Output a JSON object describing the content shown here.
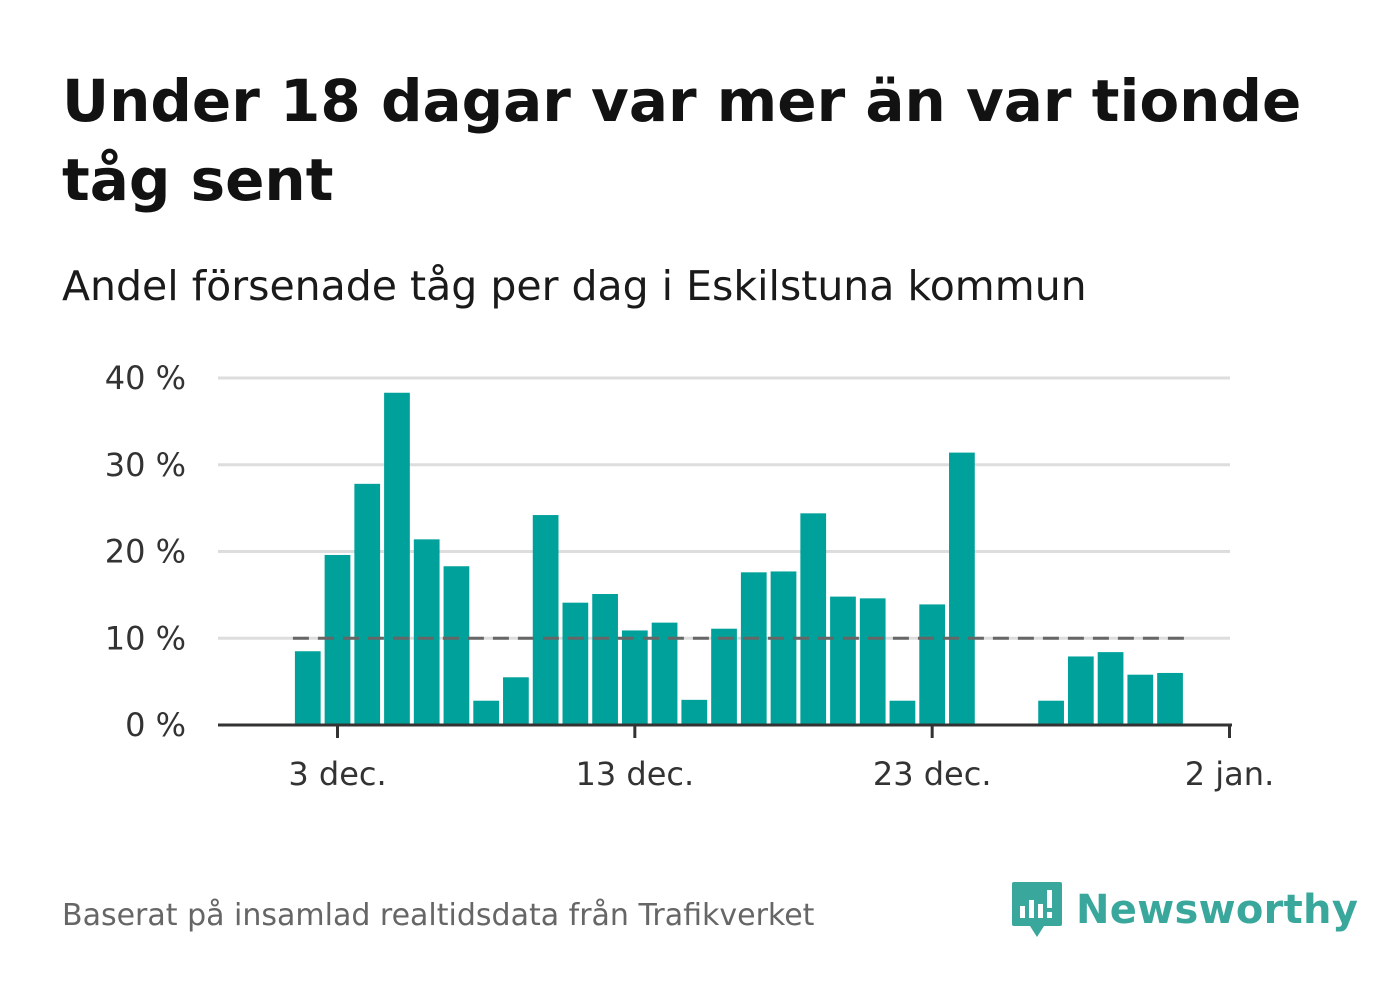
{
  "header": {
    "title": "Under 18 dagar var mer än var tionde tåg sent",
    "subtitle": "Andel försenade tåg per dag i Eskilstuna kommun"
  },
  "footer": {
    "source": "Baserat på insamlad realtidsdata från Trafikverket",
    "logo_text": "Newsworthy"
  },
  "colors": {
    "bar": "#00a19a",
    "reference_line": "#666666",
    "grid": "#dddddd",
    "axis": "#333333",
    "logo": "#3aa79c"
  },
  "chart_data": {
    "type": "bar",
    "x": [
      "2023-12-02",
      "2023-12-03",
      "2023-12-04",
      "2023-12-05",
      "2023-12-06",
      "2023-12-07",
      "2023-12-08",
      "2023-12-09",
      "2023-12-10",
      "2023-12-11",
      "2023-12-12",
      "2023-12-13",
      "2023-12-14",
      "2023-12-15",
      "2023-12-16",
      "2023-12-17",
      "2023-12-18",
      "2023-12-19",
      "2023-12-20",
      "2023-12-21",
      "2023-12-22",
      "2023-12-23",
      "2023-12-24",
      "2023-12-25",
      "2023-12-26",
      "2023-12-27",
      "2023-12-28",
      "2023-12-29",
      "2023-12-30",
      "2023-12-31"
    ],
    "values": [
      8.5,
      19.6,
      27.8,
      38.3,
      21.4,
      18.3,
      2.8,
      5.5,
      24.2,
      14.1,
      15.1,
      10.9,
      11.8,
      2.9,
      11.1,
      17.6,
      17.7,
      24.4,
      14.8,
      14.6,
      2.8,
      13.9,
      31.4,
      null,
      null,
      2.8,
      7.9,
      8.4,
      5.8,
      6.0
    ],
    "unit": "%",
    "ylim": [
      0,
      40
    ],
    "y_ticks": [
      0,
      10,
      20,
      30,
      40
    ],
    "y_tick_labels": [
      "0 %",
      "10 %",
      "20 %",
      "30 %",
      "40 %"
    ],
    "x_ticks": [
      "2023-12-03",
      "2023-12-13",
      "2023-12-23",
      "2024-01-02"
    ],
    "x_tick_labels": [
      "3 dec.",
      "13 dec.",
      "23 dec.",
      "2 jan."
    ],
    "reference_line": {
      "value": 10,
      "style": "dashed"
    },
    "grid": true,
    "legend": "none"
  }
}
